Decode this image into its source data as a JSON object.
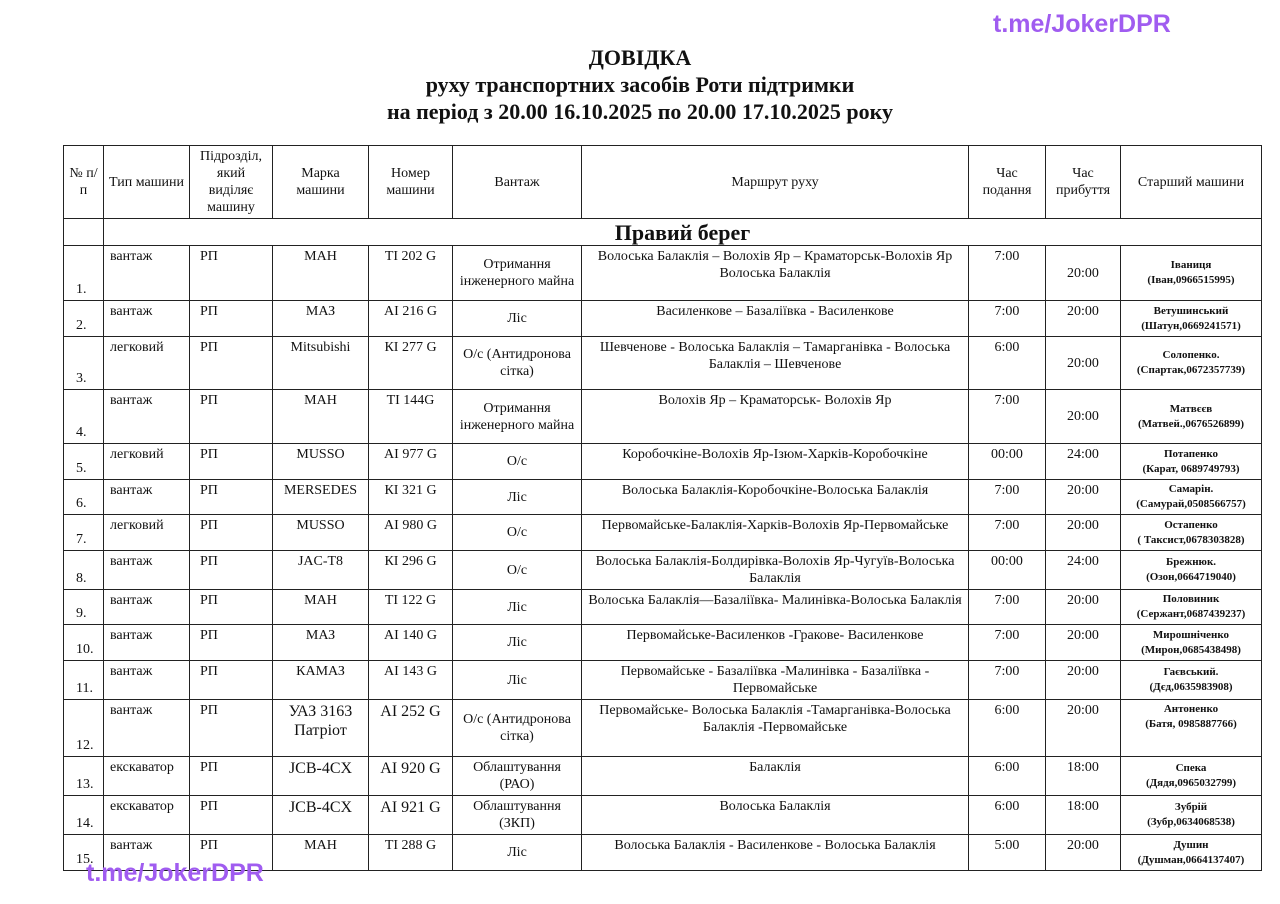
{
  "watermark": "t.me/JokerDPR",
  "title": {
    "line1": "ДОВІДКА",
    "line2": "руху транспортних засобів Роти підтримки",
    "line3": "на період з 20.00 16.10.2025 по 20.00 17.10.2025 року"
  },
  "table": {
    "headers": [
      "№ п/п",
      "Тип машини",
      "Підрозділ, який виділяє машину",
      "Марка машини",
      "Номер машини",
      "Вантаж",
      "Маршрут руху",
      "Час подання",
      "Час прибуття",
      "Старший машини"
    ],
    "section": "Правий берег",
    "rows": [
      {
        "n": "1.",
        "type": "вантаж",
        "unit": "РП",
        "brand": "МАН",
        "plate": "ТІ 202 G",
        "cargo": "Отримання інженерного майна",
        "route": "Волоська Балаклія – Волохів Яр – Краматорськ-Волохів Яр Волоська Балаклія",
        "dep": "7:00",
        "arr": "20:00",
        "officer": "Іваниця",
        "officer_info": "(Іван,0966515995)"
      },
      {
        "n": "2.",
        "type": "вантаж",
        "unit": "РП",
        "brand": "МАЗ",
        "plate": "АІ 216 G",
        "cargo": "Ліс",
        "route": "Василенкове – Базаліївка - Василенкове",
        "dep": "7:00",
        "arr": "20:00",
        "officer": "Ветушинський",
        "officer_info": "(Шатун,0669241571)"
      },
      {
        "n": "3.",
        "type": "легковий",
        "unit": "РП",
        "brand": "Mitsubishi",
        "plate": "КІ 277 G",
        "cargo": "О/с (Антидронова сітка)",
        "route": "Шевченове - Волоська Балаклія – Тамарганівка - Волоська Балаклія – Шевченове",
        "dep": "6:00",
        "arr": "20:00",
        "officer": "Солопенко.",
        "officer_info": "(Спартак,0672357739)"
      },
      {
        "n": "4.",
        "type": "вантаж",
        "unit": "РП",
        "brand": "МАН",
        "plate": "ТІ 144G",
        "cargo": "Отримання інженерного майна",
        "route": "Волохів Яр – Краматорськ- Волохів Яр",
        "dep": "7:00",
        "arr": "20:00",
        "officer": "Матвєєв",
        "officer_info": "(Матвей.,0676526899)"
      },
      {
        "n": "5.",
        "type": "легковий",
        "unit": "РП",
        "brand": "MUSSO",
        "plate": "АІ 977 G",
        "cargo": "О/с",
        "route": "Коробочкіне-Волохів Яр-Ізюм-Харків-Коробочкіне",
        "dep": "00:00",
        "arr": "24:00",
        "officer": "Потапенко",
        "officer_info": "(Карат, 0689749793)"
      },
      {
        "n": "6.",
        "type": "вантаж",
        "unit": "РП",
        "brand": "MERSEDES",
        "plate": "КІ 321 G",
        "cargo": "Ліс",
        "route": "Волоська Балаклія-Коробочкіне-Волоська Балаклія",
        "dep": "7:00",
        "arr": "20:00",
        "officer": "Самарін.",
        "officer_info": "(Самурай,0508566757)"
      },
      {
        "n": "7.",
        "type": "легковий",
        "unit": "РП",
        "brand": "MUSSO",
        "plate": "АІ 980 G",
        "cargo": "О/с",
        "route": "Первомайське-Балаклія-Харків-Волохів Яр-Первомайське",
        "dep": "7:00",
        "arr": "20:00",
        "officer": "Остапенко",
        "officer_info": "( Таксист,0678303828)"
      },
      {
        "n": "8.",
        "type": "вантаж",
        "unit": "РП",
        "brand": "JAC-T8",
        "plate": "КІ 296 G",
        "cargo": "О/с",
        "route": "Волоська Балаклія-Болдирівка-Волохів Яр-Чугуїв-Волоська Балаклія",
        "dep": "00:00",
        "arr": "24:00",
        "officer": "Брежнюк.",
        "officer_info": "(Озон,0664719040)"
      },
      {
        "n": "9.",
        "type": "вантаж",
        "unit": "РП",
        "brand": "МАН",
        "plate": "ТІ 122 G",
        "cargo": "Ліс",
        "route": "Волоська Балаклія—Базаліївка- Малинівка-Волоська Балаклія",
        "dep": "7:00",
        "arr": "20:00",
        "officer": "Половиник",
        "officer_info": "(Сержант,0687439237)"
      },
      {
        "n": "10.",
        "type": "вантаж",
        "unit": "РП",
        "brand": "МАЗ",
        "plate": "АІ 140 G",
        "cargo": "Ліс",
        "route": "Первомайське-Василенков -Гракове- Василенкове",
        "dep": "7:00",
        "arr": "20:00",
        "officer": "Мирошніченко",
        "officer_info": "(Мирон,0685438498)"
      },
      {
        "n": "11.",
        "type": "вантаж",
        "unit": "РП",
        "brand": "КАМАЗ",
        "plate": "АІ 143 G",
        "cargo": "Ліс",
        "route": "Первомайське - Базаліївка -Малинівка - Базаліївка - Первомайське",
        "dep": "7:00",
        "arr": "20:00",
        "officer": "Гаєвський.",
        "officer_info": "(Дєд,0635983908)"
      },
      {
        "n": "12.",
        "type": "вантаж",
        "unit": "РП",
        "brand": "УАЗ 3163 Патріот",
        "plate": "АІ 252 G",
        "cargo": "О/с (Антидронова сітка)",
        "route": "Первомайське- Волоська Балаклія -Тамарганівка-Волоська Балаклія -Первомайське",
        "dep": "6:00",
        "arr": "20:00",
        "officer": "Антоненко",
        "officer_info": "(Батя, 0985887766)"
      },
      {
        "n": "13.",
        "type": "екскаватор",
        "unit": "РП",
        "brand": "JCB-4CX",
        "plate": "АІ 920 G",
        "cargo": "Облаштування (РАО)",
        "route": "Балаклія",
        "dep": "6:00",
        "arr": "18:00",
        "officer": "Спека",
        "officer_info": "(Дядя,0965032799)"
      },
      {
        "n": "14.",
        "type": "екскаватор",
        "unit": "РП",
        "brand": "JCB-4CX",
        "plate": "АІ 921 G",
        "cargo": "Облаштування (ЗКП)",
        "route": "Волоська Балаклія",
        "dep": "6:00",
        "arr": "18:00",
        "officer": "Зубрій",
        "officer_info": "(Зубр,0634068538)"
      },
      {
        "n": "15.",
        "type": "вантаж",
        "unit": "РП",
        "brand": "МАН",
        "plate": "ТІ 288 G",
        "cargo": "Ліс",
        "route": "Волоська Балаклія - Василенкове - Волоська Балаклія",
        "dep": "5:00",
        "arr": "20:00",
        "officer": "Душин",
        "officer_info": "(Душман,0664137407)"
      }
    ]
  }
}
